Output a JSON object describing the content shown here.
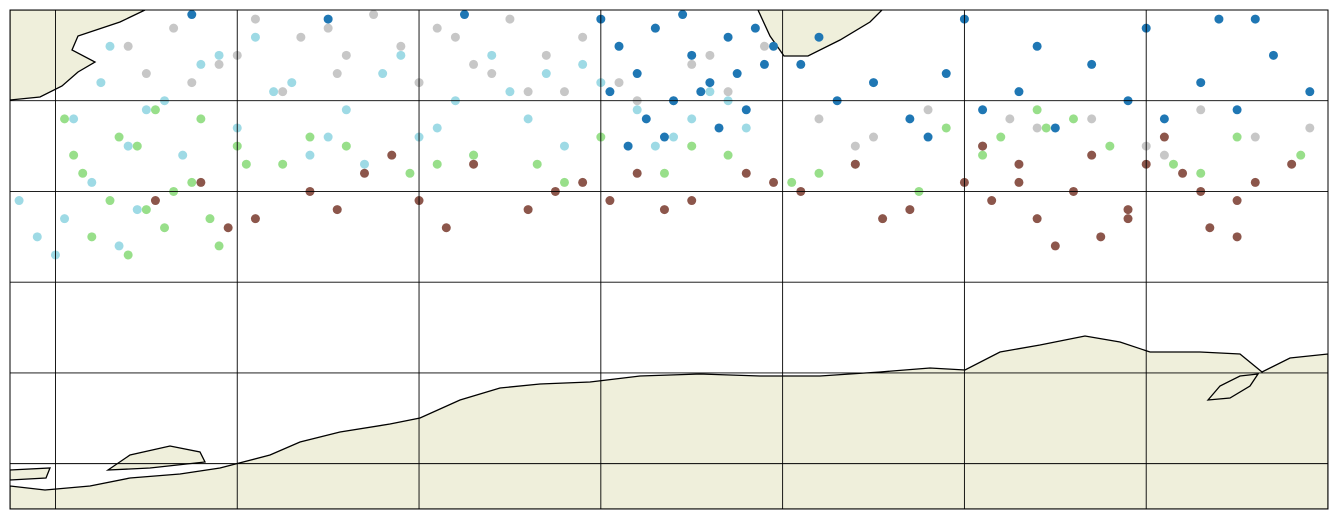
{
  "chart_data": {
    "type": "scatter",
    "xlim": [
      15,
      160
    ],
    "ylim": [
      -65,
      -10
    ],
    "xticks": [
      20,
      40,
      60,
      80,
      100,
      120,
      140
    ],
    "yticks": [
      -20,
      -30,
      -40,
      -50,
      -60
    ],
    "grid": true,
    "series": [
      {
        "color": "#c7c7c7",
        "x": [
          28,
          33,
          38,
          42,
          47,
          51,
          55,
          58,
          62,
          66,
          70,
          74,
          78,
          82,
          86,
          90,
          94,
          98,
          35,
          45,
          52,
          60,
          68,
          76,
          84,
          92,
          30,
          40,
          50,
          64,
          72,
          88,
          104,
          110,
          116,
          122,
          128,
          134,
          140,
          146,
          152,
          158,
          108,
          125,
          142
        ],
        "y": [
          -14,
          -12,
          -16,
          -11,
          -13,
          -17,
          -10.5,
          -14,
          -12,
          -16,
          -11,
          -15,
          -13,
          -18,
          -12,
          -16,
          -19,
          -14,
          -18,
          -19,
          -15,
          -18,
          -17,
          -19,
          -20,
          -15,
          -17,
          -15,
          -12,
          -13,
          -19,
          -20,
          -22,
          -24,
          -21,
          -25,
          -23,
          -22,
          -25,
          -21,
          -24,
          -23,
          -25,
          -22,
          -26
        ]
      },
      {
        "color": "#9edae5",
        "x": [
          22,
          25,
          28,
          32,
          36,
          40,
          44,
          48,
          52,
          56,
          60,
          64,
          68,
          72,
          76,
          80,
          84,
          88,
          92,
          96,
          26,
          34,
          42,
          50,
          58,
          66,
          74,
          82,
          90,
          30,
          38,
          46,
          54,
          62,
          70,
          78,
          86,
          94,
          16,
          18,
          21,
          24,
          27,
          20,
          29
        ],
        "y": [
          -22,
          -18,
          -25,
          -20,
          -16,
          -23,
          -19,
          -26,
          -21,
          -17,
          -24,
          -20,
          -15,
          -22,
          -25,
          -18,
          -21,
          -24,
          -19,
          -23,
          -14,
          -26,
          -13,
          -24,
          -15,
          -26,
          -17,
          -14,
          -22,
          -21,
          -15,
          -18,
          -27,
          -23,
          -19,
          -16,
          -25,
          -20,
          -31,
          -35,
          -33,
          -29,
          -36,
          -37,
          -32
        ]
      },
      {
        "color": "#98df8a",
        "x": [
          21,
          23,
          26,
          29,
          32,
          35,
          38,
          41,
          24,
          28,
          33,
          37,
          22,
          27,
          31,
          36,
          45,
          52,
          59,
          66,
          73,
          80,
          87,
          94,
          101,
          108,
          115,
          122,
          129,
          136,
          143,
          150,
          157,
          48,
          62,
          76,
          90,
          104,
          118,
          132,
          146,
          124,
          128,
          30,
          40
        ],
        "y": [
          -22,
          -28,
          -31,
          -25,
          -34,
          -29,
          -36,
          -27,
          -35,
          -37,
          -30,
          -33,
          -26,
          -24,
          -21,
          -22,
          -27,
          -25,
          -28,
          -26,
          -27,
          -24,
          -28,
          -26,
          -29,
          -27,
          -30,
          -26,
          -23,
          -25,
          -27,
          -24,
          -26,
          -24,
          -27,
          -29,
          -25,
          -28,
          -23,
          -22,
          -28,
          -24,
          -21,
          -32,
          -25
        ]
      },
      {
        "color": "#8c564b",
        "x": [
          31,
          36,
          42,
          48,
          54,
          60,
          66,
          72,
          78,
          84,
          90,
          96,
          102,
          108,
          114,
          120,
          126,
          132,
          138,
          144,
          150,
          156,
          39,
          51,
          63,
          75,
          87,
          99,
          111,
          123,
          135,
          147,
          122,
          126,
          130,
          134,
          138,
          142,
          146,
          150,
          128,
          140,
          152,
          57,
          81
        ],
        "y": [
          -31,
          -29,
          -33,
          -30,
          -28,
          -31,
          -27,
          -32,
          -29,
          -28,
          -31,
          -28,
          -30,
          -27,
          -32,
          -29,
          -27,
          -30,
          -33,
          -28,
          -31,
          -27,
          -34,
          -32,
          -34,
          -30,
          -32,
          -29,
          -33,
          -31,
          -35,
          -34,
          -25,
          -29,
          -36,
          -26,
          -32,
          -24,
          -30,
          -35,
          -33,
          -27,
          -29,
          -26,
          -31
        ]
      },
      {
        "color": "#1f77b4",
        "x": [
          80,
          82,
          84,
          86,
          88,
          90,
          92,
          94,
          96,
          98,
          81,
          85,
          89,
          93,
          97,
          83,
          87,
          91,
          95,
          99,
          102,
          106,
          110,
          114,
          118,
          122,
          126,
          130,
          134,
          138,
          142,
          146,
          150,
          154,
          158,
          104,
          116,
          128,
          140,
          152,
          35,
          50,
          65,
          120,
          148
        ],
        "y": [
          -11,
          -14,
          -17,
          -12,
          -20,
          -15,
          -18,
          -13,
          -21,
          -16,
          -19,
          -22,
          -10.5,
          -23,
          -12,
          -25,
          -24,
          -19,
          -17,
          -14,
          -16,
          -20,
          -18,
          -22,
          -17,
          -21,
          -19,
          -23,
          -16,
          -20,
          -22,
          -18,
          -21,
          -15,
          -19,
          -13,
          -24,
          -14,
          -12,
          -11,
          -10.5,
          -11,
          -10.5,
          -11,
          -11
        ]
      }
    ]
  }
}
